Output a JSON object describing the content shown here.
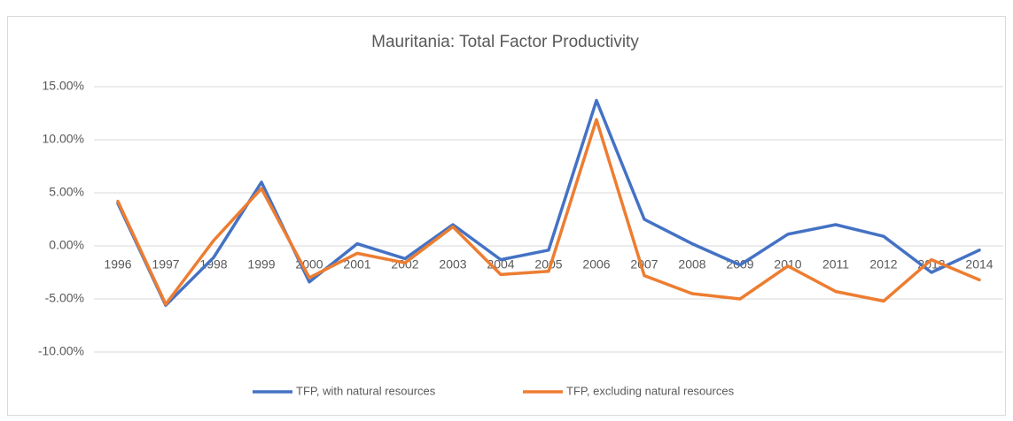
{
  "chart_data": {
    "type": "line",
    "title": "Mauritania: Total Factor Productivity",
    "categories": [
      "1996",
      "1997",
      "1998",
      "1999",
      "2000",
      "2001",
      "2002",
      "2003",
      "2004",
      "2005",
      "2006",
      "2007",
      "2008",
      "2009",
      "2010",
      "2011",
      "2012",
      "2013",
      "2014"
    ],
    "series": [
      {
        "name": "TFP, with natural resources",
        "color": "#4472c4",
        "values": [
          4.0,
          -5.6,
          -1.1,
          6.0,
          -3.4,
          0.2,
          -1.2,
          2.0,
          -1.3,
          -0.4,
          13.7,
          2.5,
          0.2,
          -1.8,
          1.1,
          2.0,
          0.9,
          -2.5,
          -0.4
        ]
      },
      {
        "name": "TFP, excluding natural resources",
        "color": "#ed7d31",
        "values": [
          4.2,
          -5.5,
          0.5,
          5.4,
          -3.0,
          -0.7,
          -1.6,
          1.8,
          -2.7,
          -2.4,
          11.9,
          -2.8,
          -4.5,
          -5.0,
          -1.9,
          -4.3,
          -5.2,
          -1.3,
          -3.2
        ]
      }
    ],
    "ylim": [
      -10,
      15
    ],
    "yticks": [
      {
        "value": -10,
        "label": "-10.00%"
      },
      {
        "value": -5,
        "label": "-5.00%"
      },
      {
        "value": 0,
        "label": "0.00%"
      },
      {
        "value": 5,
        "label": "5.00%"
      },
      {
        "value": 10,
        "label": "10.00%"
      },
      {
        "value": 15,
        "label": "15.00%"
      }
    ],
    "grid": true,
    "legend": "bottom"
  }
}
